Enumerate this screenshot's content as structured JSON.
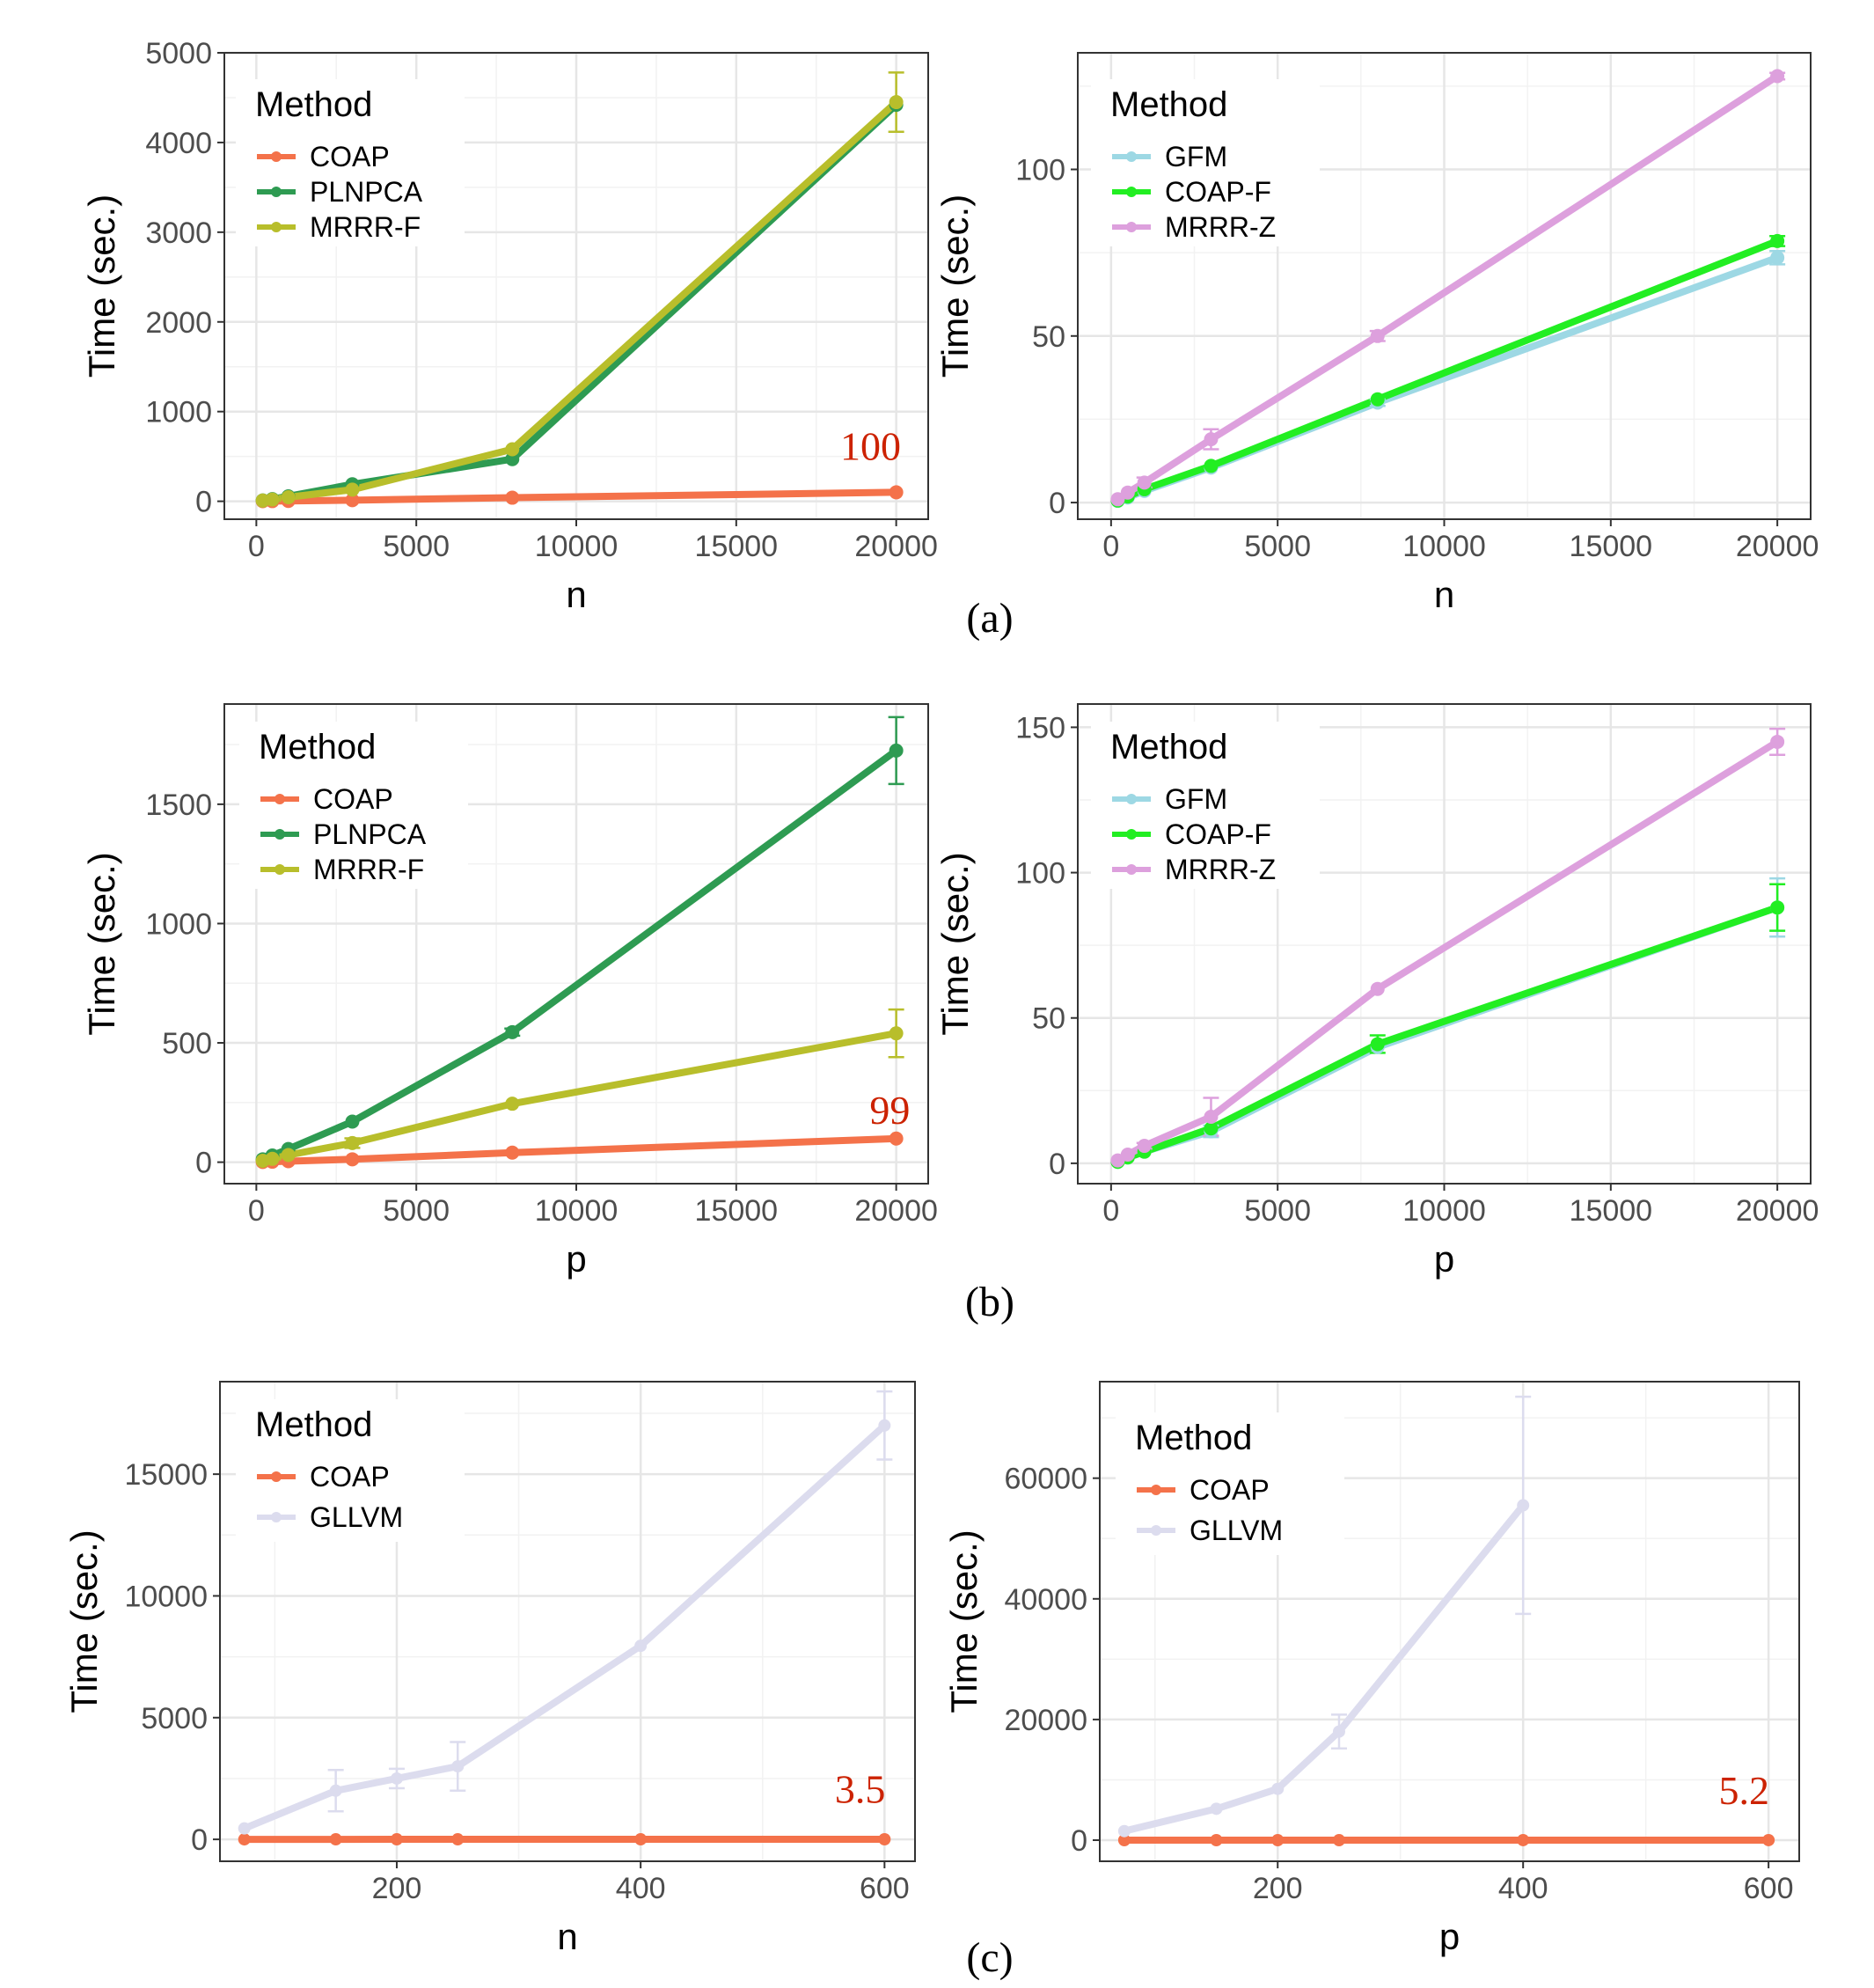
{
  "chart_data": [
    {
      "id": "a-left",
      "type": "line",
      "xlabel": "n",
      "ylabel": "Time (sec.)",
      "xlim": [
        -1000,
        21000
      ],
      "ylim": [
        -200,
        5000
      ],
      "xticks": [
        0,
        5000,
        10000,
        15000,
        20000
      ],
      "yticks": [
        0,
        1000,
        2000,
        3000,
        4000,
        5000
      ],
      "legend": {
        "title": "Method",
        "position": "top-left"
      },
      "series": [
        {
          "name": "COAP",
          "color": "#f4724a",
          "x": [
            200,
            500,
            1000,
            3000,
            8000,
            20000
          ],
          "values": [
            1,
            2,
            4,
            12,
            40,
            100
          ]
        },
        {
          "name": "PLNPCA",
          "color": "#2e9b52",
          "x": [
            200,
            500,
            1000,
            3000,
            8000,
            20000
          ],
          "values": [
            10,
            25,
            55,
            190,
            470,
            4420
          ]
        },
        {
          "name": "MRRR-F",
          "color": "#b8be2b",
          "x": [
            200,
            500,
            1000,
            3000,
            8000,
            20000
          ],
          "values": [
            8,
            20,
            45,
            130,
            580,
            4450
          ],
          "error": [
            0,
            0,
            0,
            0,
            0,
            330
          ]
        }
      ],
      "annotations": [
        {
          "text": "100",
          "x": 19200,
          "y": 460
        }
      ]
    },
    {
      "id": "a-right",
      "type": "line",
      "xlabel": "n",
      "ylabel": "Time (sec.)",
      "xlim": [
        -1000,
        21000
      ],
      "ylim": [
        -5,
        135
      ],
      "xticks": [
        0,
        5000,
        10000,
        15000,
        20000
      ],
      "yticks": [
        0,
        50,
        100
      ],
      "legend": {
        "title": "Method",
        "position": "top-left"
      },
      "series": [
        {
          "name": "GFM",
          "color": "#9dd8e4",
          "x": [
            200,
            500,
            1000,
            3000,
            8000,
            20000
          ],
          "values": [
            0.5,
            1.5,
            3.5,
            10.5,
            30,
            73.5
          ],
          "error": [
            0,
            0,
            0,
            0,
            1,
            2
          ]
        },
        {
          "name": "COAP-F",
          "color": "#22ee22",
          "x": [
            200,
            500,
            1000,
            3000,
            8000,
            20000
          ],
          "values": [
            0.6,
            1.8,
            4,
            11,
            31,
            78.5
          ],
          "error": [
            0,
            0,
            0,
            0,
            0,
            1.5
          ]
        },
        {
          "name": "MRRR-Z",
          "color": "#dda0dd",
          "x": [
            200,
            500,
            1000,
            3000,
            8000,
            20000
          ],
          "values": [
            1,
            3,
            6,
            19,
            50,
            128
          ],
          "error": [
            0,
            0,
            1.5,
            3,
            1.5,
            1
          ]
        }
      ]
    },
    {
      "id": "b-left",
      "type": "line",
      "xlabel": "p",
      "ylabel": "Time (sec.)",
      "xlim": [
        -1000,
        21000
      ],
      "ylim": [
        -90,
        1920
      ],
      "xticks": [
        0,
        5000,
        10000,
        15000,
        20000
      ],
      "yticks": [
        0,
        500,
        1000,
        1500
      ],
      "legend": {
        "title": "Method",
        "position": "top-left"
      },
      "series": [
        {
          "name": "COAP",
          "color": "#f4724a",
          "x": [
            200,
            500,
            1000,
            3000,
            8000,
            20000
          ],
          "values": [
            1,
            2,
            4,
            12,
            40,
            99
          ]
        },
        {
          "name": "PLNPCA",
          "color": "#2e9b52",
          "x": [
            200,
            500,
            1000,
            3000,
            8000,
            20000
          ],
          "values": [
            12,
            28,
            55,
            170,
            545,
            1725
          ],
          "error": [
            0,
            0,
            0,
            0,
            15,
            140
          ]
        },
        {
          "name": "MRRR-F",
          "color": "#b8be2b",
          "x": [
            200,
            500,
            1000,
            3000,
            8000,
            20000
          ],
          "values": [
            6,
            14,
            30,
            80,
            245,
            540
          ],
          "error": [
            0,
            0,
            0,
            20,
            0,
            100
          ]
        }
      ],
      "annotations": [
        {
          "text": "99",
          "x": 19800,
          "y": 160
        }
      ]
    },
    {
      "id": "b-right",
      "type": "line",
      "xlabel": "p",
      "ylabel": "Time (sec.)",
      "xlim": [
        -1000,
        21000
      ],
      "ylim": [
        -7,
        158
      ],
      "xticks": [
        0,
        5000,
        10000,
        15000,
        20000
      ],
      "yticks": [
        0,
        50,
        100,
        150
      ],
      "legend": {
        "title": "Method",
        "position": "top-left"
      },
      "series": [
        {
          "name": "GFM",
          "color": "#9dd8e4",
          "x": [
            200,
            500,
            1000,
            3000,
            8000,
            20000
          ],
          "values": [
            0.5,
            2,
            4,
            11,
            40,
            88
          ],
          "error": [
            0,
            0,
            0,
            2,
            0,
            10
          ]
        },
        {
          "name": "COAP-F",
          "color": "#22ee22",
          "x": [
            200,
            500,
            1000,
            3000,
            8000,
            20000
          ],
          "values": [
            0.5,
            2,
            4,
            12,
            41,
            88
          ],
          "error": [
            0,
            0,
            0,
            0,
            3,
            8
          ]
        },
        {
          "name": "MRRR-Z",
          "color": "#dda0dd",
          "x": [
            200,
            500,
            1000,
            3000,
            8000,
            20000
          ],
          "values": [
            1,
            3,
            6,
            16,
            60,
            145
          ],
          "error": [
            0,
            0,
            1,
            6.5,
            0,
            4.5
          ]
        }
      ]
    },
    {
      "id": "c-left",
      "type": "line",
      "xlabel": "n",
      "ylabel": "Time (sec.)",
      "xlim": [
        55,
        625
      ],
      "ylim": [
        -900,
        18800
      ],
      "xticks": [
        200,
        400,
        600
      ],
      "yticks": [
        0,
        5000,
        10000,
        15000
      ],
      "legend": {
        "title": "Method",
        "position": "top-left"
      },
      "series": [
        {
          "name": "COAP",
          "color": "#f4724a",
          "x": [
            75,
            150,
            200,
            250,
            400,
            600
          ],
          "values": [
            1,
            1.5,
            2,
            2.2,
            2.8,
            3.5
          ]
        },
        {
          "name": "GLLVM",
          "color": "#dcdcee",
          "x": [
            75,
            150,
            200,
            250,
            400,
            600
          ],
          "values": [
            450,
            2000,
            2500,
            3000,
            7950,
            17000
          ],
          "error": [
            0,
            850,
            400,
            1000,
            0,
            1400
          ]
        }
      ],
      "annotations": [
        {
          "text": "3.5",
          "x": 580,
          "y": 1500
        }
      ]
    },
    {
      "id": "c-right",
      "type": "line",
      "xlabel": "p",
      "ylabel": "Time (sec.)",
      "xlim": [
        55,
        625
      ],
      "ylim": [
        -3500,
        76000
      ],
      "xticks": [
        200,
        400,
        600
      ],
      "yticks": [
        0,
        20000,
        40000,
        60000
      ],
      "legend": {
        "title": "Method",
        "position": "top-left"
      },
      "series": [
        {
          "name": "COAP",
          "color": "#f4724a",
          "x": [
            75,
            150,
            200,
            250,
            400,
            600
          ],
          "values": [
            1,
            1.5,
            2,
            2.5,
            3.5,
            5.2
          ]
        },
        {
          "name": "GLLVM",
          "color": "#dcdcee",
          "x": [
            75,
            150,
            200,
            250,
            400
          ],
          "values": [
            1500,
            5200,
            8500,
            18000,
            55500
          ],
          "error": [
            0,
            0,
            0,
            2800,
            18000
          ]
        }
      ],
      "annotations": [
        {
          "text": "5.2",
          "x": 580,
          "y": 6000
        }
      ]
    }
  ],
  "subfigure_labels": [
    "(a)",
    "(b)",
    "(c)"
  ]
}
